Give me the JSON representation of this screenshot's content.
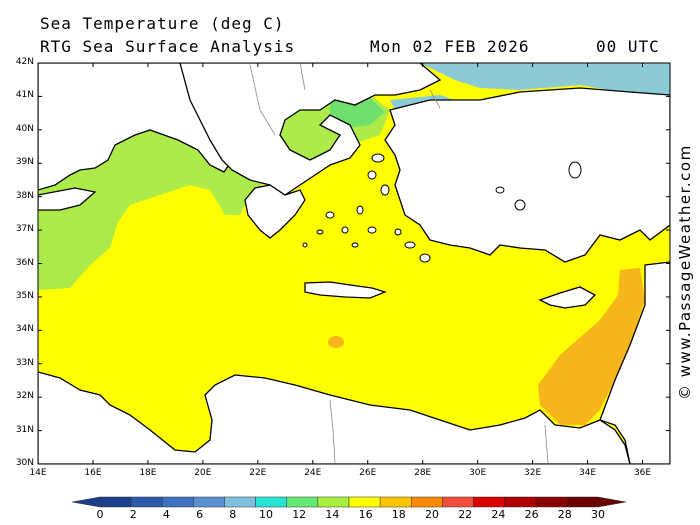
{
  "header": {
    "title": "Sea Temperature (deg C)",
    "subtitle": "RTG Sea Surface Analysis",
    "date": "Mon 02 FEB 2026",
    "time": "00 UTC"
  },
  "watermark": "© www.PassageWeather.com",
  "lat_labels": [
    "42N",
    "41N",
    "40N",
    "39N",
    "38N",
    "37N",
    "36N",
    "35N",
    "34N",
    "33N",
    "32N",
    "31N",
    "30N"
  ],
  "lon_labels": [
    "14E",
    "16E",
    "18E",
    "20E",
    "22E",
    "24E",
    "26E",
    "28E",
    "30E",
    "32E",
    "34E",
    "36E"
  ],
  "colorbar": {
    "labels": [
      "0",
      "2",
      "4",
      "6",
      "8",
      "10",
      "12",
      "14",
      "16",
      "18",
      "20",
      "22",
      "24",
      "26",
      "28",
      "30"
    ],
    "colors": [
      "#1d3e8a",
      "#2a5aa8",
      "#3d72c0",
      "#5a90d0",
      "#7fbfe0",
      "#27e3d3",
      "#62e873",
      "#a8ef3f",
      "#ffff00",
      "#ffc400",
      "#ff8a00",
      "#f24d3c",
      "#d90000",
      "#b00000",
      "#8a0000",
      "#6b0000"
    ]
  },
  "map": {
    "colors": {
      "warm": "#ffff00",
      "cool": "#adeb4b",
      "green": "#6fe06b",
      "cold": "#8ccbd6",
      "hot": "#f7b71c",
      "land": "#ffffff",
      "grid": "#000000"
    }
  }
}
